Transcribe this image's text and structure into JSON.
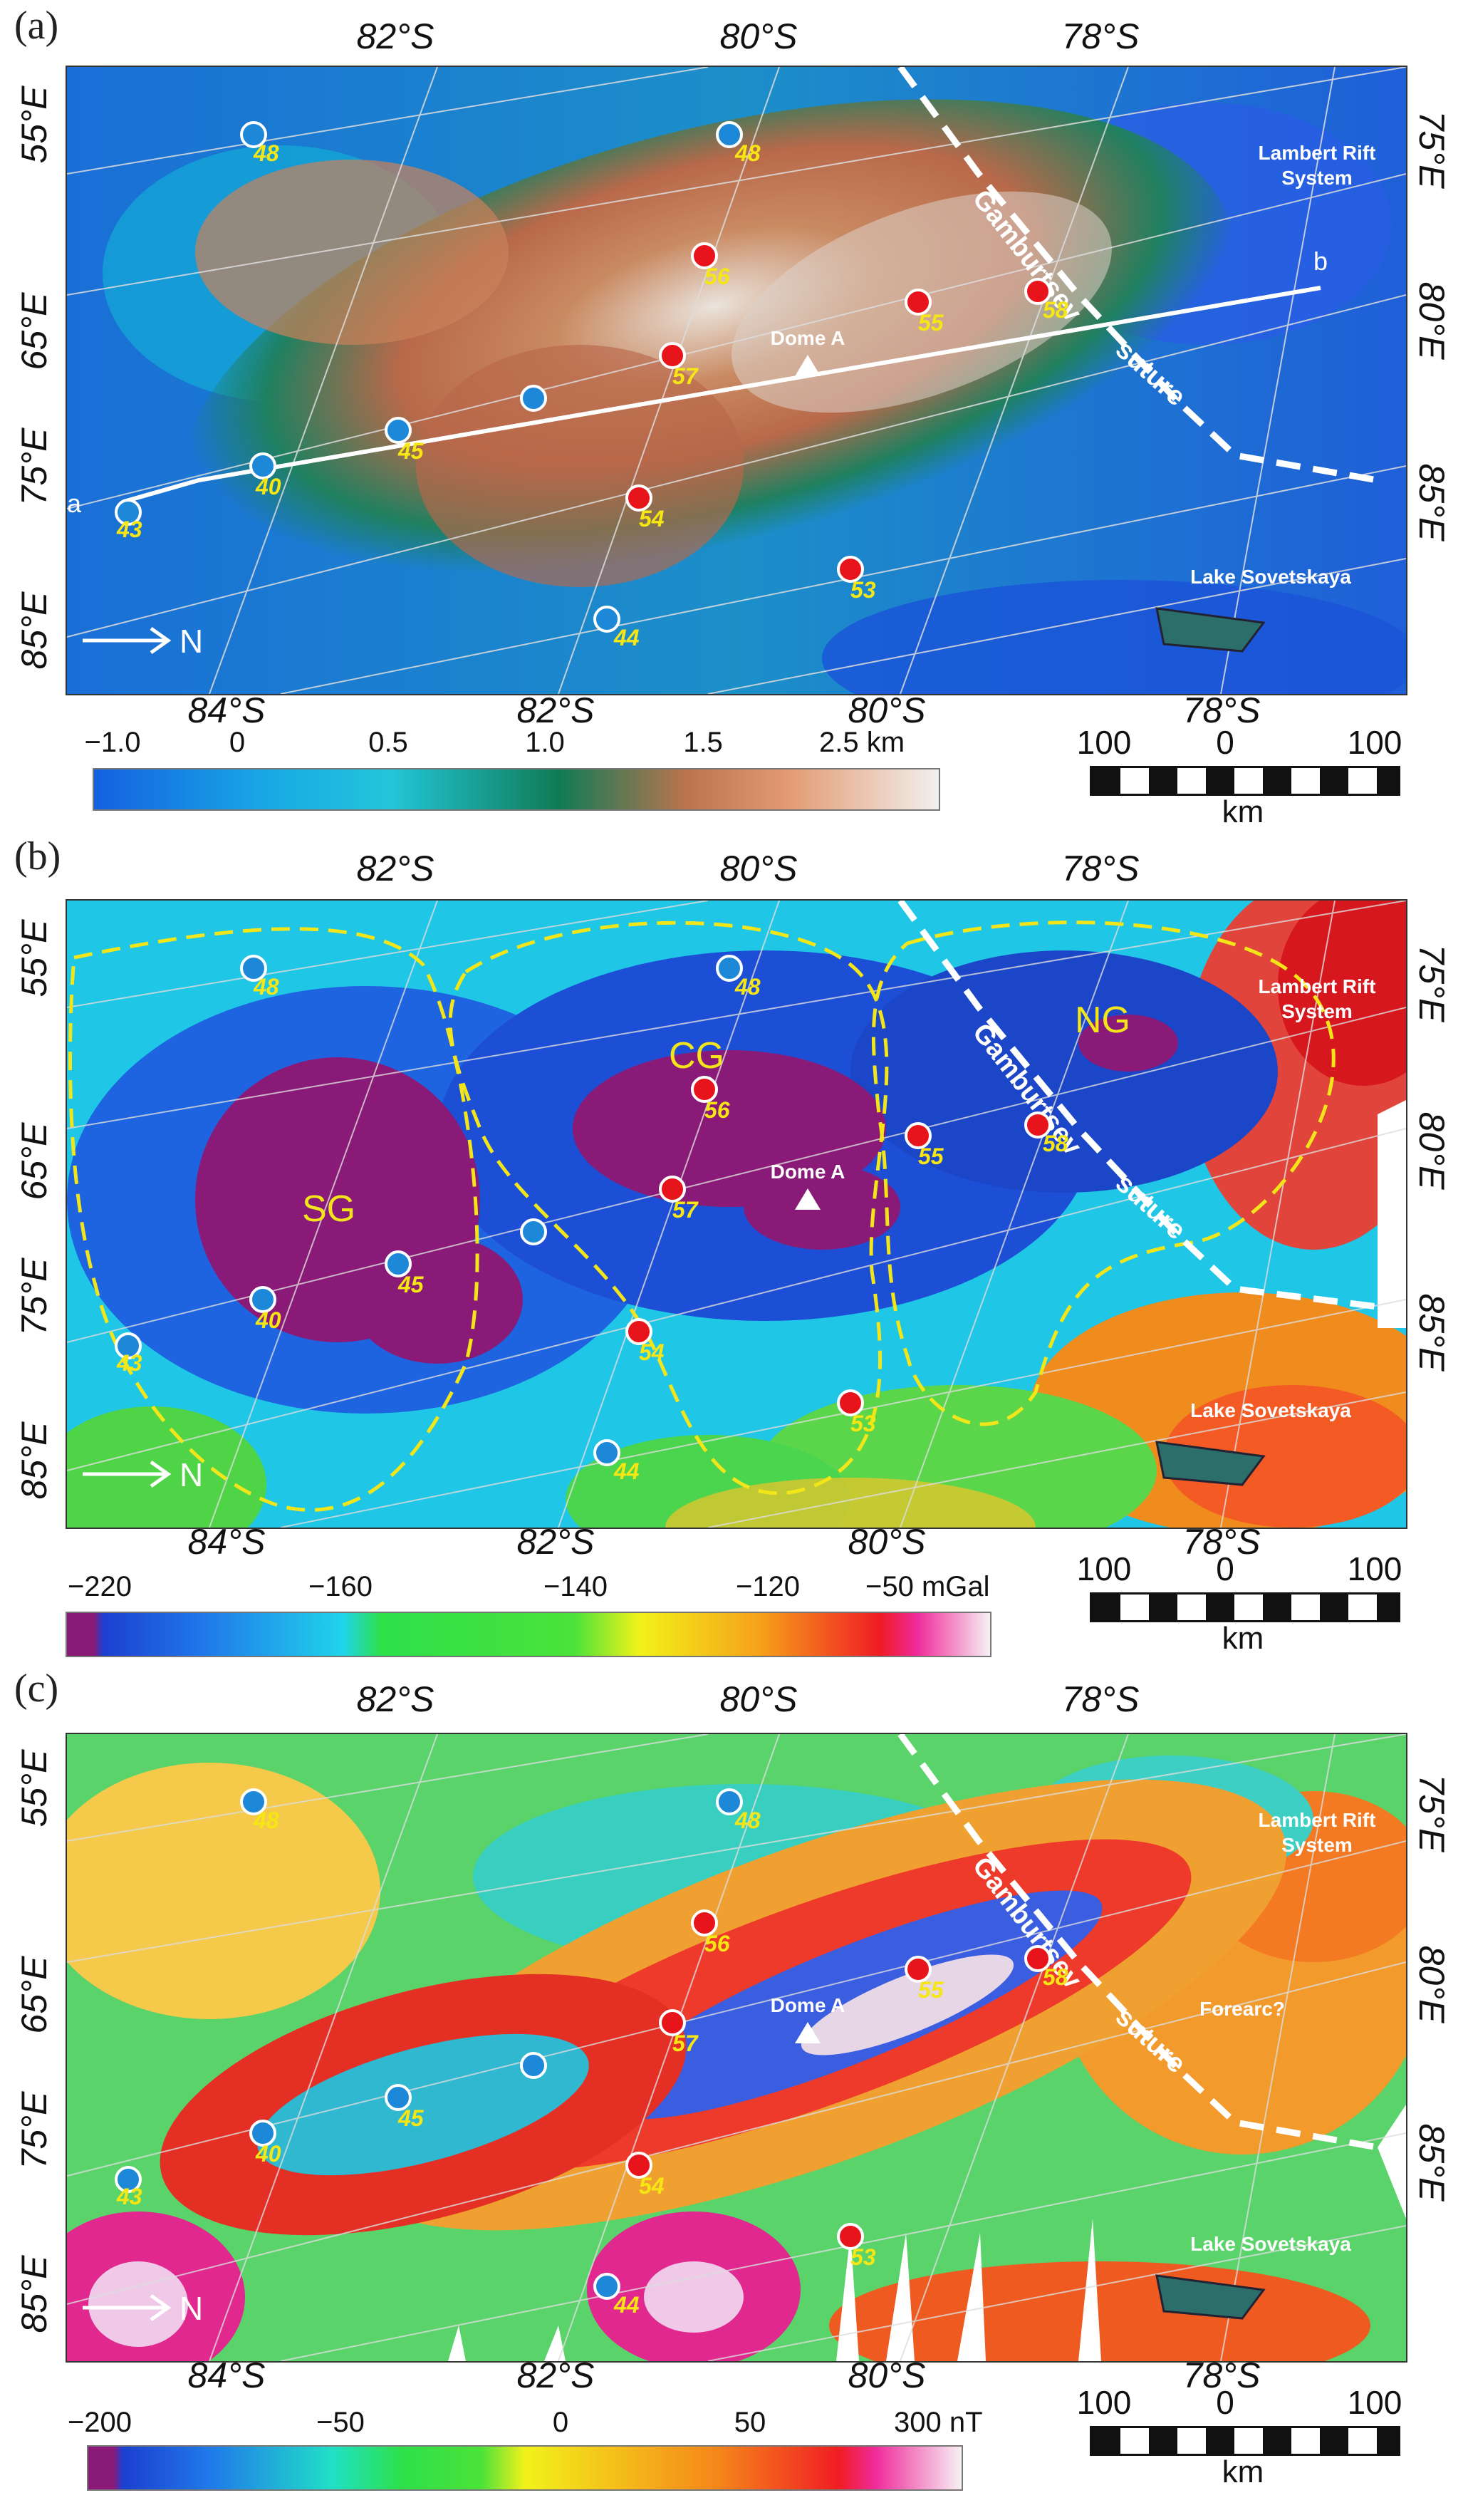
{
  "figure": {
    "panels": [
      {
        "letter": "(a)",
        "top_lat_labels": [
          "82°S",
          "80°S",
          "78°S"
        ],
        "bottom_lat_labels": [
          "84°S",
          "82°S",
          "80°S",
          "78°S"
        ],
        "left_lon_labels": [
          "55°E",
          "65°E",
          "75°E",
          "85°E"
        ],
        "right_lon_labels": [
          "75°E",
          "80°E",
          "85°E"
        ],
        "colorbar_ticks": [
          "−1.0",
          "0",
          "0.5",
          "1.0",
          "1.5",
          "2.5 km"
        ],
        "region_labels": {
          "lambert": [
            "Lambert Rift",
            "System"
          ],
          "lake": "Lake Sovetskaya",
          "suture": [
            "Gamburtsev",
            "suture"
          ],
          "dome": "Dome A"
        },
        "profile_labels": [
          "a",
          "b"
        ]
      },
      {
        "letter": "(b)",
        "top_lat_labels": [
          "82°S",
          "80°S",
          "78°S"
        ],
        "bottom_lat_labels": [
          "84°S",
          "82°S",
          "80°S",
          "78°S"
        ],
        "left_lon_labels": [
          "55°E",
          "65°E",
          "75°E",
          "85°E"
        ],
        "right_lon_labels": [
          "75°E",
          "80°E",
          "85°E"
        ],
        "colorbar_ticks": [
          "−220",
          "−160",
          "−140",
          "−120",
          "−50 mGal"
        ],
        "region_labels": {
          "lambert": [
            "Lambert Rift",
            "System"
          ],
          "lake": "Lake Sovetskaya",
          "suture": [
            "Gamburtsev",
            "suture"
          ],
          "dome": "Dome A"
        },
        "province_labels": [
          "SG",
          "CG",
          "NG"
        ]
      },
      {
        "letter": "(c)",
        "top_lat_labels": [
          "82°S",
          "80°S",
          "78°S"
        ],
        "bottom_lat_labels": [
          "84°S",
          "82°S",
          "80°S",
          "78°S"
        ],
        "left_lon_labels": [
          "55°E",
          "65°E",
          "75°E",
          "85°E"
        ],
        "right_lon_labels": [
          "75°E",
          "80°E",
          "85°E"
        ],
        "colorbar_ticks": [
          "−200",
          "−50",
          "0",
          "50",
          "300 nT"
        ],
        "region_labels": {
          "lambert": [
            "Lambert Rift",
            "System"
          ],
          "lake": "Lake Sovetskaya",
          "suture": [
            "Gamburtsev",
            "suture"
          ],
          "dome": "Dome A",
          "forearc": "Forearc?"
        }
      }
    ],
    "north_label": "N",
    "scale_bar": {
      "values": [
        "100",
        "0",
        "100"
      ],
      "unit": "km"
    },
    "sample_sites": [
      {
        "label": "48",
        "type": "blue"
      },
      {
        "label": "48",
        "type": "blue"
      },
      {
        "label": "56",
        "type": "red"
      },
      {
        "label": "55",
        "type": "red"
      },
      {
        "label": "58",
        "type": "red"
      },
      {
        "label": "57",
        "type": "red"
      },
      {
        "label": "45",
        "type": "blue"
      },
      {
        "label": "40",
        "type": "blue"
      },
      {
        "label": "43",
        "type": "blue"
      },
      {
        "label": "54",
        "type": "red"
      },
      {
        "label": "53",
        "type": "red"
      },
      {
        "label": "44",
        "type": "blue"
      },
      {
        "label": "",
        "type": "blue"
      }
    ],
    "colors": {
      "red_site": "#e8141c",
      "blue_site": "#1e88d8",
      "site_label": "#f5e614",
      "suture_line": "#ffffff",
      "province_outline": "#f2e61a"
    }
  }
}
